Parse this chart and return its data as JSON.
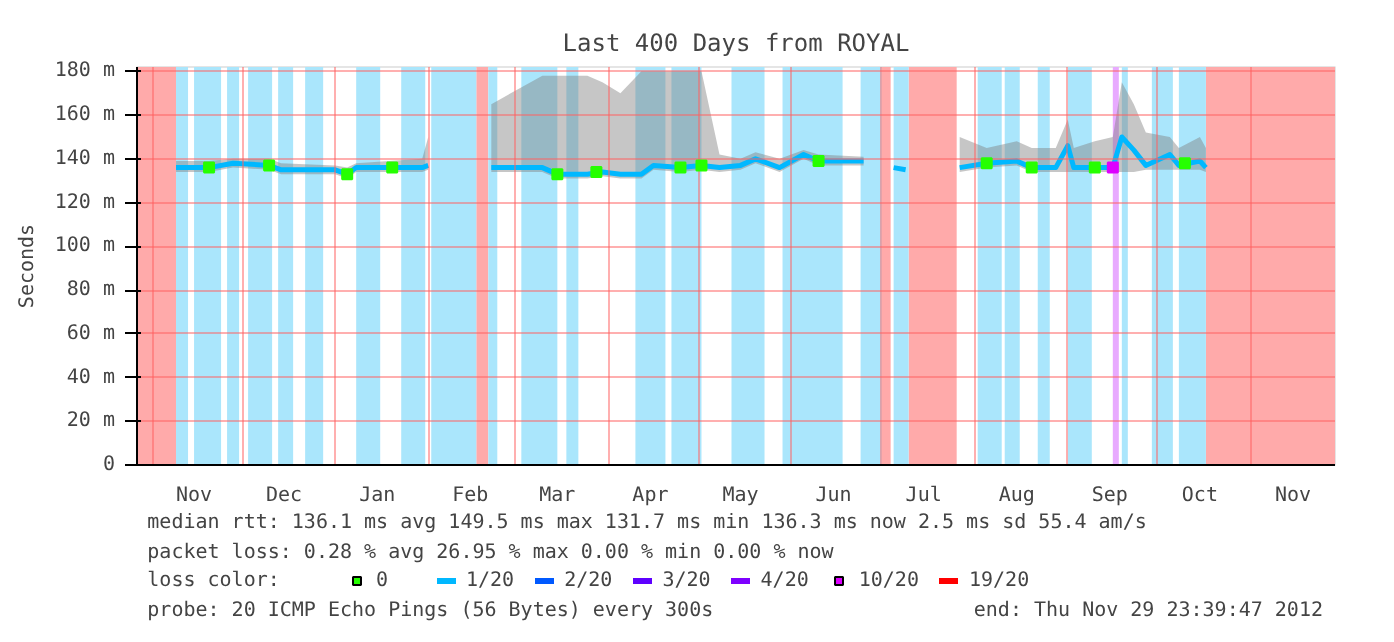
{
  "chart_data": {
    "type": "line",
    "title": "Last 400 Days from ROYAL",
    "ylabel": "Seconds",
    "legend_title": "loss color:",
    "legend": "bottom",
    "grid": true,
    "xlim": [
      "2011-10-27",
      "2012-11-29"
    ],
    "xticks": [
      {
        "value": "2011-11-01",
        "label": null
      },
      {
        "value": "2011-11-15",
        "label": "Nov"
      },
      {
        "value": "2011-12-01",
        "label": null
      },
      {
        "value": "2011-12-15",
        "label": "Dec"
      },
      {
        "value": "2012-01-01",
        "label": null
      },
      {
        "value": "2012-01-15",
        "label": "Jan"
      },
      {
        "value": "2012-02-01",
        "label": null
      },
      {
        "value": "2012-02-15",
        "label": "Feb"
      },
      {
        "value": "2012-03-01",
        "label": null
      },
      {
        "value": "2012-03-15",
        "label": "Mar"
      },
      {
        "value": "2012-04-01",
        "label": null
      },
      {
        "value": "2012-04-15",
        "label": "Apr"
      },
      {
        "value": "2012-05-01",
        "label": null
      },
      {
        "value": "2012-05-15",
        "label": "May"
      },
      {
        "value": "2012-06-01",
        "label": null
      },
      {
        "value": "2012-06-15",
        "label": "Jun"
      },
      {
        "value": "2012-07-01",
        "label": null
      },
      {
        "value": "2012-07-15",
        "label": "Jul"
      },
      {
        "value": "2012-08-01",
        "label": null
      },
      {
        "value": "2012-08-15",
        "label": "Aug"
      },
      {
        "value": "2012-09-01",
        "label": null
      },
      {
        "value": "2012-09-15",
        "label": "Sep"
      },
      {
        "value": "2012-10-01",
        "label": null
      },
      {
        "value": "2012-10-15",
        "label": "Oct"
      },
      {
        "value": "2012-11-01",
        "label": null
      },
      {
        "value": "2012-11-15",
        "label": "Nov"
      }
    ],
    "ylim": [
      0,
      182
    ],
    "yticks": [
      {
        "value": 0,
        "label": "0"
      },
      {
        "value": 20,
        "label": "20 m"
      },
      {
        "value": 40,
        "label": "40 m"
      },
      {
        "value": 60,
        "label": "60 m"
      },
      {
        "value": 80,
        "label": "80 m"
      },
      {
        "value": 100,
        "label": "100 m"
      },
      {
        "value": 120,
        "label": "120 m"
      },
      {
        "value": 140,
        "label": "140 m"
      },
      {
        "value": 160,
        "label": "160 m"
      },
      {
        "value": 180,
        "label": "180 m"
      }
    ],
    "series": [
      {
        "name": "0",
        "type": "scatter",
        "marker": "square",
        "color": "#26ff00",
        "x": [
          "2011-11-20",
          "2011-12-10",
          "2012-01-05",
          "2012-01-20",
          "2012-03-15",
          "2012-03-28",
          "2012-04-25",
          "2012-05-02",
          "2012-06-10",
          "2012-08-05",
          "2012-08-20",
          "2012-09-10",
          "2012-10-10"
        ],
        "values": [
          136,
          137,
          133,
          136,
          133,
          134,
          136,
          137,
          139,
          138,
          136,
          136,
          138
        ]
      },
      {
        "name": "1/20",
        "color": "#00b8ff",
        "x": [
          "2011-11-09",
          "2011-11-20",
          "2011-11-28",
          "2011-12-10",
          "2011-12-14",
          "2012-01-01",
          "2012-01-05",
          "2012-01-08",
          "2012-01-30",
          "2012-02-01",
          "2012-02-17",
          "2012-02-22",
          "2012-03-10",
          "2012-03-15",
          "2012-03-25",
          "2012-03-30",
          "2012-04-05",
          "2012-04-12",
          "2012-04-16",
          "2012-04-25",
          "2012-05-02",
          "2012-05-08",
          "2012-05-15",
          "2012-05-20",
          "2012-05-28",
          "2012-06-05",
          "2012-06-10",
          "2012-06-25",
          "2012-07-02",
          "2012-07-05",
          "2012-07-09",
          "2012-07-18",
          "2012-07-27",
          "2012-08-05",
          "2012-08-15",
          "2012-08-20",
          "2012-08-28",
          "2012-09-01",
          "2012-09-03",
          "2012-09-10",
          "2012-09-16",
          "2012-09-19",
          "2012-09-23",
          "2012-09-27",
          "2012-10-05",
          "2012-10-08",
          "2012-10-15",
          "2012-10-17"
        ],
        "values": [
          136,
          136,
          138,
          137,
          135,
          135,
          133,
          136,
          136,
          137,
          null,
          136,
          136,
          133,
          133,
          134,
          133,
          133,
          137,
          136,
          137,
          136,
          137,
          140,
          136,
          142,
          139,
          139,
          null,
          136,
          135,
          null,
          136,
          138,
          139,
          136,
          136,
          146,
          136,
          136,
          136,
          150,
          144,
          137,
          142,
          137,
          139,
          136
        ],
        "upper": [
          139,
          139,
          140,
          140,
          138,
          137,
          136,
          138,
          140,
          150,
          null,
          165,
          178,
          178,
          178,
          175,
          170,
          180,
          180,
          180,
          180,
          142,
          140,
          143,
          140,
          144,
          142,
          141,
          null,
          null,
          null,
          null,
          150,
          145,
          148,
          145,
          145,
          158,
          145,
          148,
          150,
          175,
          165,
          152,
          150,
          145,
          150,
          145
        ],
        "lower": [
          134,
          134,
          136,
          135,
          133,
          133,
          131,
          134,
          134,
          135,
          null,
          134,
          134,
          131,
          131,
          132,
          131,
          131,
          135,
          134,
          135,
          134,
          135,
          138,
          134,
          140,
          137,
          137,
          null,
          null,
          null,
          null,
          134,
          136,
          137,
          134,
          134,
          134,
          134,
          134,
          134,
          134,
          134,
          135,
          135,
          135,
          135,
          134
        ]
      },
      {
        "name": "2/20",
        "color": "#0059ff"
      },
      {
        "name": "3/20",
        "color": "#5e00ff"
      },
      {
        "name": "4/20",
        "color": "#7e00ff"
      },
      {
        "name": "10/20",
        "type": "scatter",
        "marker": "square",
        "color": "#dd00ff",
        "x": [
          "2012-09-16"
        ],
        "values": [
          136
        ]
      },
      {
        "name": "19/20",
        "color": "#ff0000"
      }
    ],
    "bands": [
      {
        "axis": "x",
        "from": "2011-10-27",
        "to": "2011-11-09",
        "color": "#ffaaaa"
      },
      {
        "axis": "x",
        "from": "2012-02-17",
        "to": "2012-02-21",
        "color": "#ffaaaa"
      },
      {
        "axis": "x",
        "from": "2012-07-01",
        "to": "2012-07-04",
        "color": "#ffaaaa"
      },
      {
        "axis": "x",
        "from": "2012-07-10",
        "to": "2012-07-26",
        "color": "#ffaaaa"
      },
      {
        "axis": "x",
        "from": "2012-10-17",
        "to": "2012-11-29",
        "color": "#ffaaaa"
      },
      {
        "axis": "x",
        "from": "2012-09-16",
        "to": "2012-09-18",
        "color": "#e8aaff"
      },
      {
        "axis": "x",
        "from": "2011-11-09",
        "to": "2011-11-13",
        "color": "#aae6fc"
      },
      {
        "axis": "x",
        "from": "2011-11-15",
        "to": "2011-11-24",
        "color": "#aae6fc"
      },
      {
        "axis": "x",
        "from": "2011-11-26",
        "to": "2011-11-30",
        "color": "#aae6fc"
      },
      {
        "axis": "x",
        "from": "2011-12-03",
        "to": "2011-12-11",
        "color": "#aae6fc"
      },
      {
        "axis": "x",
        "from": "2011-12-13",
        "to": "2011-12-18",
        "color": "#aae6fc"
      },
      {
        "axis": "x",
        "from": "2011-12-22",
        "to": "2011-12-28",
        "color": "#aae6fc"
      },
      {
        "axis": "x",
        "from": "2012-01-08",
        "to": "2012-01-16",
        "color": "#aae6fc"
      },
      {
        "axis": "x",
        "from": "2012-01-23",
        "to": "2012-01-31",
        "color": "#aae6fc"
      },
      {
        "axis": "x",
        "from": "2012-02-02",
        "to": "2012-02-17",
        "color": "#aae6fc"
      },
      {
        "axis": "x",
        "from": "2012-02-21",
        "to": "2012-02-24",
        "color": "#aae6fc"
      },
      {
        "axis": "x",
        "from": "2012-03-03",
        "to": "2012-03-15",
        "color": "#aae6fc"
      },
      {
        "axis": "x",
        "from": "2012-03-18",
        "to": "2012-03-22",
        "color": "#aae6fc"
      },
      {
        "axis": "x",
        "from": "2012-04-10",
        "to": "2012-04-20",
        "color": "#aae6fc"
      },
      {
        "axis": "x",
        "from": "2012-04-22",
        "to": "2012-05-02",
        "color": "#aae6fc"
      },
      {
        "axis": "x",
        "from": "2012-05-12",
        "to": "2012-05-23",
        "color": "#aae6fc"
      },
      {
        "axis": "x",
        "from": "2012-05-29",
        "to": "2012-06-18",
        "color": "#aae6fc"
      },
      {
        "axis": "x",
        "from": "2012-06-24",
        "to": "2012-07-01",
        "color": "#aae6fc"
      },
      {
        "axis": "x",
        "from": "2012-07-05",
        "to": "2012-07-10",
        "color": "#aae6fc"
      },
      {
        "axis": "x",
        "from": "2012-08-02",
        "to": "2012-08-10",
        "color": "#aae6fc"
      },
      {
        "axis": "x",
        "from": "2012-08-11",
        "to": "2012-08-16",
        "color": "#aae6fc"
      },
      {
        "axis": "x",
        "from": "2012-08-22",
        "to": "2012-08-26",
        "color": "#aae6fc"
      },
      {
        "axis": "x",
        "from": "2012-09-01",
        "to": "2012-09-09",
        "color": "#aae6fc"
      },
      {
        "axis": "x",
        "from": "2012-09-19",
        "to": "2012-09-21",
        "color": "#aae6fc"
      },
      {
        "axis": "x",
        "from": "2012-09-29",
        "to": "2012-10-06",
        "color": "#aae6fc"
      },
      {
        "axis": "x",
        "from": "2012-10-08",
        "to": "2012-10-17",
        "color": "#aae6fc"
      }
    ],
    "annotations": [
      "median rtt:  136.1 ms avg  149.5 ms max  131.7 ms min  136.3 ms now  2.5 ms sd  55.4   am/s",
      "packet loss: 0.28 % avg  26.95 % max  0.00 % min  0.00 % now",
      "probe:       20 ICMP Echo Pings (56 Bytes) every 300s",
      "end: Thu Nov 29 23:39:47 2012"
    ]
  }
}
